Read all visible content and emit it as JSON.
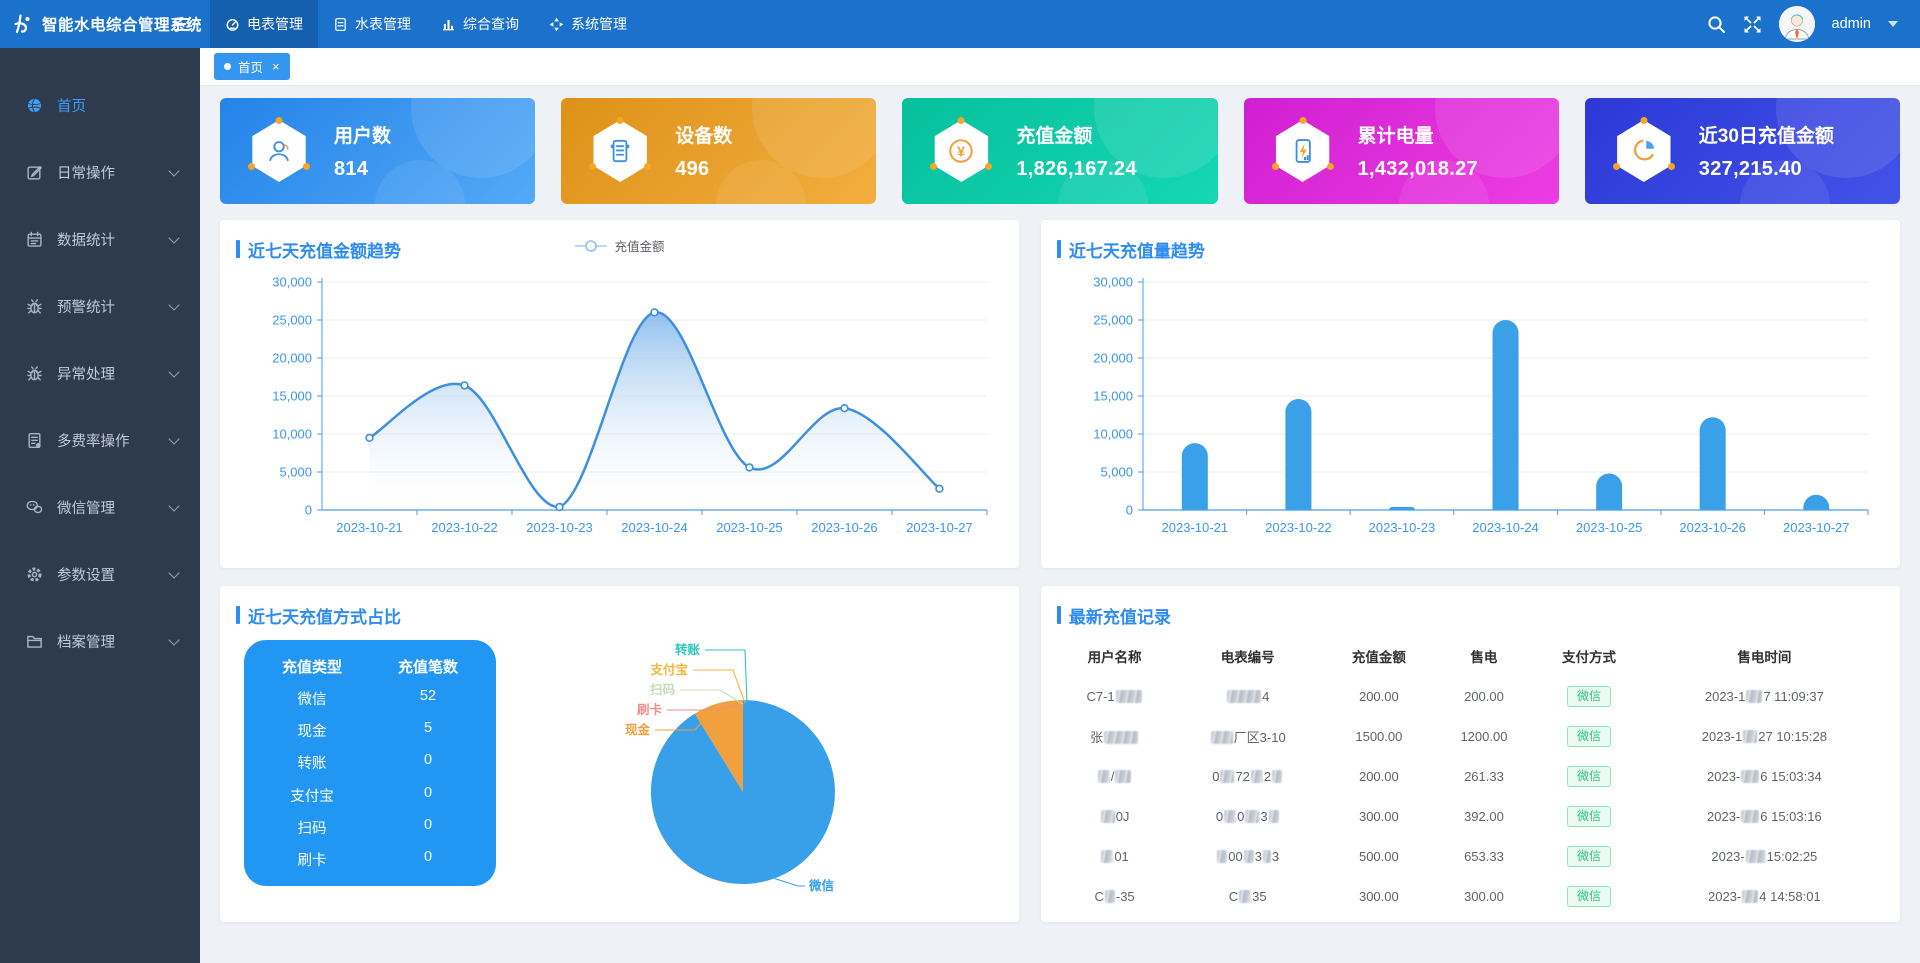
{
  "colors": {
    "navbar": "#1a72cd",
    "navbar_active": "#1460ae",
    "sidebar": "#2e3b4e",
    "accent": "#2d8cf0",
    "content_bg": "#eef1f5",
    "axis_label": "#3b97ec",
    "tab_blue": "#3596f0",
    "mini_table_bg": "#2196f3"
  },
  "navbar": {
    "title": "智能水电综合管理系统",
    "items": [
      {
        "label": "电表管理",
        "icon": "meter-icon",
        "active": true
      },
      {
        "label": "水表管理",
        "icon": "water-doc-icon",
        "active": false
      },
      {
        "label": "综合查询",
        "icon": "bar-chart-icon",
        "active": false
      },
      {
        "label": "系统管理",
        "icon": "system-icon",
        "active": false
      }
    ],
    "user": "admin"
  },
  "sidebar": {
    "items": [
      {
        "label": "首页",
        "icon": "home",
        "active": true,
        "expandable": false
      },
      {
        "label": "日常操作",
        "icon": "edit",
        "active": false,
        "expandable": true
      },
      {
        "label": "数据统计",
        "icon": "calendar",
        "active": false,
        "expandable": true
      },
      {
        "label": "预警统计",
        "icon": "bug",
        "active": false,
        "expandable": true
      },
      {
        "label": "异常处理",
        "icon": "bug",
        "active": false,
        "expandable": true
      },
      {
        "label": "多费率操作",
        "icon": "doc",
        "active": false,
        "expandable": true
      },
      {
        "label": "微信管理",
        "icon": "wechat",
        "active": false,
        "expandable": true
      },
      {
        "label": "参数设置",
        "icon": "gear",
        "active": false,
        "expandable": true
      },
      {
        "label": "档案管理",
        "icon": "archive",
        "active": false,
        "expandable": true
      }
    ]
  },
  "tabbar": {
    "active_tab": "首页",
    "close_label": "×"
  },
  "cards": [
    {
      "label": "用户数",
      "value": "814",
      "icon": "users",
      "from": "#2383e8",
      "to": "#54a9f7"
    },
    {
      "label": "设备数",
      "value": "496",
      "icon": "devices",
      "from": "#dd9118",
      "to": "#f3ae3e"
    },
    {
      "label": "充值金额",
      "value": "1,826,167.24",
      "icon": "yen",
      "from": "#06c09c",
      "to": "#16d6b4"
    },
    {
      "label": "累计电量",
      "value": "1,432,018.27",
      "icon": "power",
      "from": "#cf1fd0",
      "to": "#ee3ce4"
    },
    {
      "label": "近30日充值金额",
      "value": "327,215.40",
      "icon": "clock",
      "from": "#2b38d6",
      "to": "#4353e9"
    }
  ],
  "chart_data": [
    {
      "type": "line",
      "title": "近七天充值金额趋势",
      "legend": "充值金额",
      "legend_position": "top-center",
      "categories": [
        "2023-10-21",
        "2023-10-22",
        "2023-10-23",
        "2023-10-24",
        "2023-10-25",
        "2023-10-26",
        "2023-10-27"
      ],
      "values": [
        9500,
        16400,
        400,
        26000,
        5600,
        13400,
        2800
      ],
      "ylim": [
        0,
        30000
      ],
      "ytick": 5000,
      "grid": true,
      "color": "#3d8fe0",
      "area": true,
      "smooth": true
    },
    {
      "type": "bar",
      "title": "近七天充值量趋势",
      "categories": [
        "2023-10-21",
        "2023-10-22",
        "2023-10-23",
        "2023-10-24",
        "2023-10-25",
        "2023-10-26",
        "2023-10-27"
      ],
      "values": [
        8800,
        14600,
        400,
        25000,
        4800,
        12200,
        2000
      ],
      "ylim": [
        0,
        30000
      ],
      "ytick": 5000,
      "grid": true,
      "color": "#3aa0e8"
    },
    {
      "type": "pie",
      "title": "近七天充值方式占比",
      "series": [
        {
          "name": "微信",
          "value": 52,
          "color": "#38a0e8"
        },
        {
          "name": "现金",
          "value": 5,
          "color": "#f0a03c"
        },
        {
          "name": "转账",
          "value": 0,
          "color": "#2cc6c0"
        },
        {
          "name": "支付宝",
          "value": 0,
          "color": "#f5b83c"
        },
        {
          "name": "扫码",
          "value": 0,
          "color": "#c5dcba"
        },
        {
          "name": "刷卡",
          "value": 0,
          "color": "#ef8d8d"
        }
      ]
    }
  ],
  "pie_table": {
    "headers": [
      "充值类型",
      "充值笔数"
    ],
    "rows": [
      [
        "微信",
        "52"
      ],
      [
        "现金",
        "5"
      ],
      [
        "转账",
        "0"
      ],
      [
        "支付宝",
        "0"
      ],
      [
        "扫码",
        "0"
      ],
      [
        "刷卡",
        "0"
      ]
    ]
  },
  "records": {
    "title": "最新充值记录",
    "columns": [
      "用户名称",
      "电表编号",
      "充值金额",
      "售电",
      "支付方式",
      "售电时间"
    ],
    "tag": {
      "text_color": "#2fc47f",
      "bg": "#e9fbf2",
      "border": "#8fe3ba"
    },
    "rows": [
      {
        "user": [
          [
            "t",
            "C7-1"
          ],
          [
            "r",
            26
          ]
        ],
        "meter": [
          [
            "r",
            34
          ],
          [
            "t",
            "4"
          ]
        ],
        "amount": "200.00",
        "sold": "200.00",
        "pay": "微信",
        "time": [
          [
            "t",
            "2023-1"
          ],
          [
            "r",
            16
          ],
          [
            "t",
            "7 11:09:37"
          ]
        ]
      },
      {
        "user": [
          [
            "t",
            "张"
          ],
          [
            "r",
            34
          ]
        ],
        "meter": [
          [
            "r",
            22
          ],
          [
            "t",
            "厂区3-10"
          ]
        ],
        "amount": "1500.00",
        "sold": "1200.00",
        "pay": "微信",
        "time": [
          [
            "t",
            "2023-1"
          ],
          [
            "r",
            14
          ],
          [
            "t",
            "27 10:15:28"
          ]
        ]
      },
      {
        "user": [
          [
            "r",
            12
          ],
          [
            "t",
            "/"
          ],
          [
            "r",
            16
          ]
        ],
        "meter": [
          [
            "t",
            "0"
          ],
          [
            "r",
            14
          ],
          [
            "t",
            "72"
          ],
          [
            "r",
            12
          ],
          [
            "t",
            "2"
          ],
          [
            "r",
            10
          ]
        ],
        "amount": "200.00",
        "sold": "261.33",
        "pay": "微信",
        "time": [
          [
            "t",
            "2023-"
          ],
          [
            "r",
            18
          ],
          [
            "t",
            "6 15:03:34"
          ]
        ]
      },
      {
        "user": [
          [
            "r",
            14
          ],
          [
            "t",
            "0J"
          ]
        ],
        "meter": [
          [
            "t",
            "0"
          ],
          [
            "r",
            12
          ],
          [
            "t",
            "0"
          ],
          [
            "r",
            14
          ],
          [
            "t",
            "3"
          ],
          [
            "r",
            10
          ]
        ],
        "amount": "300.00",
        "sold": "392.00",
        "pay": "微信",
        "time": [
          [
            "t",
            "2023-"
          ],
          [
            "r",
            18
          ],
          [
            "t",
            "6 15:03:16"
          ]
        ]
      },
      {
        "user": [
          [
            "r",
            12
          ],
          [
            "t",
            "01"
          ]
        ],
        "meter": [
          [
            "r",
            10
          ],
          [
            "t",
            "00"
          ],
          [
            "r",
            10
          ],
          [
            "t",
            "3"
          ],
          [
            "r",
            8
          ],
          [
            "t",
            "3"
          ]
        ],
        "amount": "500.00",
        "sold": "653.33",
        "pay": "微信",
        "time": [
          [
            "t",
            "2023-"
          ],
          [
            "r",
            20
          ],
          [
            "t",
            "15:02:25"
          ]
        ]
      },
      {
        "user": [
          [
            "t",
            "C"
          ],
          [
            "r",
            10
          ],
          [
            "t",
            "-35"
          ]
        ],
        "meter": [
          [
            "t",
            "C"
          ],
          [
            "r",
            12
          ],
          [
            "t",
            "35"
          ]
        ],
        "amount": "300.00",
        "sold": "300.00",
        "pay": "微信",
        "time": [
          [
            "t",
            "2023-"
          ],
          [
            "r",
            16
          ],
          [
            "t",
            "4 14:58:01"
          ]
        ]
      }
    ]
  }
}
